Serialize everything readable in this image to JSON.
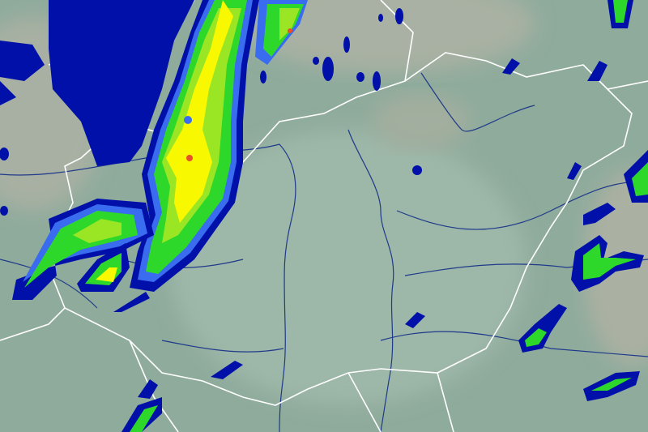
{
  "map": {
    "colors": {
      "land_low": "#8fab9c",
      "land_plain": "#9cb5a6",
      "land_hill": "#a9b3a4",
      "border": "#ffffff",
      "river": "#1f3a8a"
    },
    "precipitation_levels": [
      {
        "level": 1,
        "color": "#0010a8"
      },
      {
        "level": 2,
        "color": "#3a6cf0"
      },
      {
        "level": 3,
        "color": "#2ed82a"
      },
      {
        "level": 4,
        "color": "#9be624"
      },
      {
        "level": 5,
        "color": "#f8f800"
      },
      {
        "level": 6,
        "color": "#e8502a"
      }
    ]
  }
}
